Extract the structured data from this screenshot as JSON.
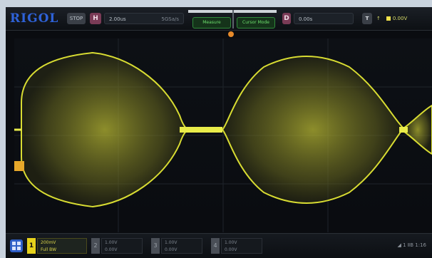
{
  "brand": {
    "logo": "RIGOL"
  },
  "topbar": {
    "run_state": "STOP",
    "horizontal": {
      "label": "H",
      "value": "2.00us",
      "sub": "5GSa/s"
    },
    "buttons": [
      {
        "label": "Measure"
      },
      {
        "label": "Cursor Mode"
      }
    ],
    "delay": {
      "label": "D",
      "value": "0.00s"
    },
    "trigger": {
      "label": "T",
      "edge": "↑",
      "value": "0.00V"
    }
  },
  "channels": [
    {
      "label": "1",
      "line1": "200mV",
      "line2": "Full BW",
      "active": true
    },
    {
      "label": "2",
      "line1": "1.00V",
      "line2": "0.00V",
      "active": false
    },
    {
      "label": "3",
      "line1": "1.00V",
      "line2": "0.00V",
      "active": false
    },
    {
      "label": "4",
      "line1": "1.00V",
      "line2": "0.00V",
      "active": false
    }
  ],
  "status": {
    "text": "◢ 1 ⅡB 1:16"
  },
  "colors": {
    "trace": "#d8dc32",
    "accent": "#2e62d8",
    "marker": "#e7a82a"
  },
  "icons": {
    "menu": "menu-grid-icon",
    "trigger_dot": "trigger-level-icon",
    "position": "position-marker-icon"
  }
}
